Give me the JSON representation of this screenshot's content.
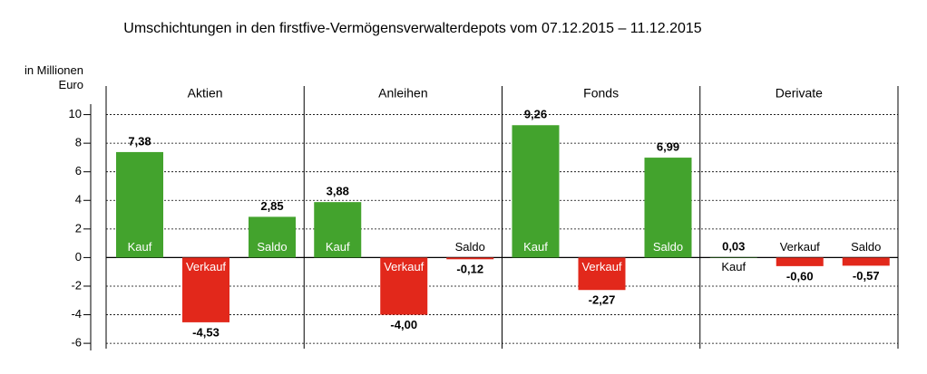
{
  "chart_data": {
    "type": "bar",
    "title": "Umschichtungen in den firstfive-Vermögensverwalterdepots vom 07.12.2015 – 11.12.2015",
    "ylabel": "in Millionen Euro",
    "categories": [
      "Aktien",
      "Anleihen",
      "Fonds",
      "Derivate"
    ],
    "series": [
      {
        "name": "Kauf",
        "values": [
          7.38,
          3.88,
          9.26,
          0.03
        ],
        "value_labels": [
          "7,38",
          "3,88",
          "9,26",
          "0,03"
        ]
      },
      {
        "name": "Verkauf",
        "values": [
          -4.53,
          -4.0,
          -2.27,
          -0.6
        ],
        "value_labels": [
          "-4,53",
          "-4,00",
          "-2,27",
          "-0,60"
        ]
      },
      {
        "name": "Saldo",
        "values": [
          2.85,
          -0.12,
          6.99,
          -0.57
        ],
        "value_labels": [
          "2,85",
          "-0,12",
          "6,99",
          "-0,57"
        ]
      }
    ],
    "positive_color": "#43a32d",
    "negative_color": "#e2281b",
    "ylim": [
      -6.5,
      12
    ],
    "yticks": [
      10,
      8,
      6,
      4,
      2,
      0,
      -2,
      -4,
      -6
    ],
    "grid": true
  }
}
